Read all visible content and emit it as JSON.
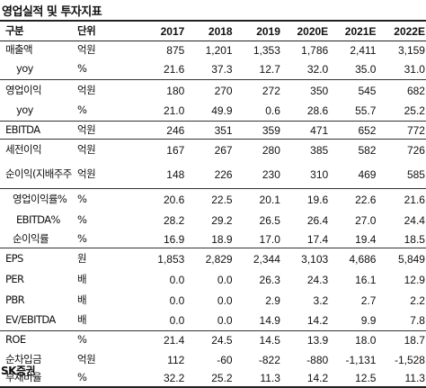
{
  "title": "영업실적 및 투자지표",
  "columns": {
    "label": "구분",
    "unit": "단위",
    "years": [
      "2017",
      "2018",
      "2019",
      "2020E",
      "2021E",
      "2022E"
    ]
  },
  "rows": [
    {
      "label": "매출액",
      "unit": "억원",
      "values": [
        "875",
        "1,201",
        "1,353",
        "1,786",
        "2,411",
        "3,159"
      ]
    },
    {
      "label": "yoy",
      "unit": "%",
      "values": [
        "21.6",
        "37.3",
        "12.7",
        "32.0",
        "35.0",
        "31.0"
      ]
    },
    {
      "label": "영업이익",
      "unit": "억원",
      "values": [
        "180",
        "270",
        "272",
        "350",
        "545",
        "682"
      ]
    },
    {
      "label": "yoy",
      "unit": "%",
      "values": [
        "21.0",
        "49.9",
        "0.6",
        "28.6",
        "55.7",
        "25.2"
      ]
    },
    {
      "label": "EBITDA",
      "unit": "억원",
      "values": [
        "246",
        "351",
        "359",
        "471",
        "652",
        "772"
      ]
    },
    {
      "label": "세전이익",
      "unit": "억원",
      "values": [
        "167",
        "267",
        "280",
        "385",
        "582",
        "726"
      ]
    },
    {
      "label": "순이익(지배주주",
      "unit": "억원",
      "values": [
        "148",
        "226",
        "230",
        "310",
        "469",
        "585"
      ]
    },
    {
      "label": "영업이익률%",
      "unit": "%",
      "values": [
        "20.6",
        "22.5",
        "20.1",
        "19.6",
        "22.6",
        "21.6"
      ]
    },
    {
      "label": "EBITDA%",
      "unit": "%",
      "values": [
        "28.2",
        "29.2",
        "26.5",
        "26.4",
        "27.0",
        "24.4"
      ]
    },
    {
      "label": "순이익률",
      "unit": "%",
      "values": [
        "16.9",
        "18.9",
        "17.0",
        "17.4",
        "19.4",
        "18.5"
      ]
    },
    {
      "label": "EPS",
      "unit": "원",
      "values": [
        "1,853",
        "2,829",
        "2,344",
        "3,103",
        "4,686",
        "5,849"
      ]
    },
    {
      "label": "PER",
      "unit": "배",
      "values": [
        "0.0",
        "0.0",
        "26.3",
        "24.3",
        "16.1",
        "12.9"
      ]
    },
    {
      "label": "PBR",
      "unit": "배",
      "values": [
        "0.0",
        "0.0",
        "2.9",
        "3.2",
        "2.7",
        "2.2"
      ]
    },
    {
      "label": "EV/EBITDA",
      "unit": "배",
      "values": [
        "0.0",
        "0.0",
        "14.9",
        "14.2",
        "9.9",
        "7.8"
      ]
    },
    {
      "label": "ROE",
      "unit": "%",
      "values": [
        "21.4",
        "24.5",
        "14.5",
        "13.9",
        "18.0",
        "18.7"
      ]
    },
    {
      "label": "순차입금",
      "unit": "억원",
      "values": [
        "112",
        "-60",
        "-822",
        "-880",
        "-1,131",
        "-1,528"
      ]
    },
    {
      "label": "부채비율",
      "unit": "%",
      "values": [
        "32.2",
        "25.2",
        "11.3",
        "14.2",
        "12.5",
        "11.3"
      ]
    }
  ],
  "source": "SK증권"
}
